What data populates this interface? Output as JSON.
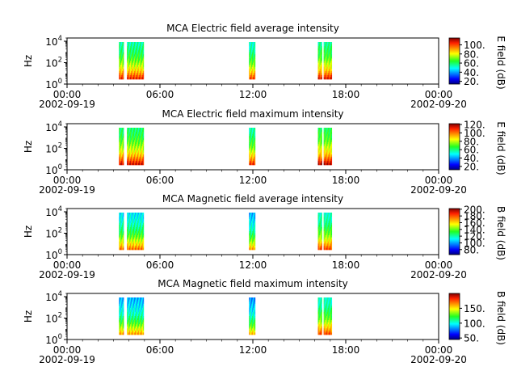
{
  "chart_data": [
    {
      "type": "heatmap",
      "title": "MCA  Electric field average intensity",
      "ylabel": "Hz",
      "y_scale": "log",
      "ylim": [
        1,
        20000
      ],
      "y_ticks": [
        {
          "base": "10",
          "exp": "0"
        },
        {
          "base": "10",
          "exp": "2"
        },
        {
          "base": "10",
          "exp": "4"
        }
      ],
      "x_ticks": [
        "00:00",
        "06:00",
        "12:00",
        "18:00",
        "00:00"
      ],
      "x_dates": [
        "2002-09-19",
        "2002-09-20"
      ],
      "xlim_hours": [
        0,
        24
      ],
      "colorbar": {
        "label": "E field (dB)",
        "min": 14,
        "max": 115,
        "ticks": [
          "20.",
          "40.",
          "60.",
          "80.",
          "100."
        ]
      },
      "segments": [
        {
          "start_hour": 3.35,
          "end_hour": 4.95,
          "gap_start_hour": 3.65,
          "gap_end_hour": 3.85,
          "level": 0.58
        },
        {
          "start_hour": 11.75,
          "end_hour": 12.15,
          "gap_start_hour": null,
          "gap_end_hour": null,
          "level": 0.55
        },
        {
          "start_hour": 16.2,
          "end_hour": 17.1,
          "gap_start_hour": 16.45,
          "gap_end_hour": 16.55,
          "level": 0.6
        }
      ]
    },
    {
      "type": "heatmap",
      "title": "MCA  Electric field maximum intensity",
      "ylabel": "Hz",
      "y_scale": "log",
      "ylim": [
        1,
        20000
      ],
      "y_ticks": [
        {
          "base": "10",
          "exp": "0"
        },
        {
          "base": "10",
          "exp": "2"
        },
        {
          "base": "10",
          "exp": "4"
        }
      ],
      "x_ticks": [
        "00:00",
        "06:00",
        "12:00",
        "18:00",
        "00:00"
      ],
      "x_dates": [
        "2002-09-19",
        "2002-09-20"
      ],
      "xlim_hours": [
        0,
        24
      ],
      "colorbar": {
        "label": "E field (dB)",
        "min": 12,
        "max": 122,
        "ticks": [
          "20.",
          "40.",
          "60.",
          "80.",
          "100.",
          "120."
        ]
      },
      "segments": [
        {
          "start_hour": 3.35,
          "end_hour": 4.95,
          "gap_start_hour": 3.65,
          "gap_end_hour": 3.85,
          "level": 0.62
        },
        {
          "start_hour": 11.75,
          "end_hour": 12.15,
          "gap_start_hour": null,
          "gap_end_hour": null,
          "level": 0.58
        },
        {
          "start_hour": 16.2,
          "end_hour": 17.1,
          "gap_start_hour": 16.45,
          "gap_end_hour": 16.55,
          "level": 0.64
        }
      ]
    },
    {
      "type": "heatmap",
      "title": "MCA  Magnetic field average intensity",
      "ylabel": "Hz",
      "y_scale": "log",
      "ylim": [
        1,
        20000
      ],
      "y_ticks": [
        {
          "base": "10",
          "exp": "0"
        },
        {
          "base": "10",
          "exp": "2"
        },
        {
          "base": "10",
          "exp": "4"
        }
      ],
      "x_ticks": [
        "00:00",
        "06:00",
        "12:00",
        "18:00",
        "00:00"
      ],
      "x_dates": [
        "2002-09-19",
        "2002-09-20"
      ],
      "xlim_hours": [
        0,
        24
      ],
      "colorbar": {
        "label": "B field (dB)",
        "min": 65,
        "max": 202,
        "ticks": [
          "80.",
          "100.",
          "120.",
          "140.",
          "160.",
          "180.",
          "200."
        ]
      },
      "segments": [
        {
          "start_hour": 3.35,
          "end_hour": 4.95,
          "gap_start_hour": 3.65,
          "gap_end_hour": 3.85,
          "level": 0.5
        },
        {
          "start_hour": 11.75,
          "end_hour": 12.15,
          "gap_start_hour": null,
          "gap_end_hour": null,
          "level": 0.45
        },
        {
          "start_hour": 16.2,
          "end_hour": 17.1,
          "gap_start_hour": 16.45,
          "gap_end_hour": 16.55,
          "level": 0.55
        }
      ]
    },
    {
      "type": "heatmap",
      "title": "MCA  Magnetic field maximum intensity",
      "ylabel": "Hz",
      "y_scale": "log",
      "ylim": [
        1,
        20000
      ],
      "y_ticks": [
        {
          "base": "10",
          "exp": "0"
        },
        {
          "base": "10",
          "exp": "2"
        },
        {
          "base": "10",
          "exp": "4"
        }
      ],
      "x_ticks": [
        "00:00",
        "06:00",
        "12:00",
        "18:00",
        "00:00"
      ],
      "x_dates": [
        "2002-09-19",
        "2002-09-20"
      ],
      "xlim_hours": [
        0,
        24
      ],
      "colorbar": {
        "label": "B field (dB)",
        "min": 45,
        "max": 200,
        "ticks": [
          "50.",
          "100.",
          "150."
        ]
      },
      "segments": [
        {
          "start_hour": 3.35,
          "end_hour": 4.95,
          "gap_start_hour": 3.65,
          "gap_end_hour": 3.85,
          "level": 0.45
        },
        {
          "start_hour": 11.75,
          "end_hour": 12.15,
          "gap_start_hour": null,
          "gap_end_hour": null,
          "level": 0.42
        },
        {
          "start_hour": 16.2,
          "end_hour": 17.1,
          "gap_start_hour": 16.45,
          "gap_end_hour": 16.55,
          "level": 0.55
        }
      ]
    }
  ]
}
